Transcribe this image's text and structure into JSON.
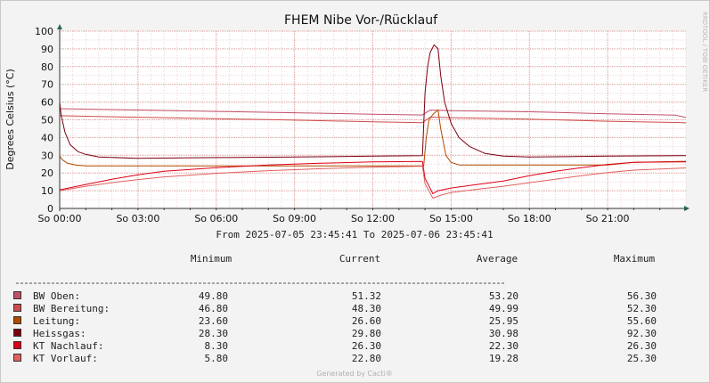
{
  "chart_data": {
    "type": "line",
    "title": "FHEM Nibe Vor-/Rücklauf",
    "ylabel": "Degrees Celsius (°C)",
    "xlabel": "",
    "ylim": [
      0,
      100
    ],
    "y_ticks": [
      0,
      10,
      20,
      30,
      40,
      50,
      60,
      70,
      80,
      90,
      100
    ],
    "x_range_hours": [
      0,
      24
    ],
    "x_ticks": [
      {
        "hour": 0,
        "label": "So 00:00"
      },
      {
        "hour": 3,
        "label": "So 03:00"
      },
      {
        "hour": 6,
        "label": "So 06:00"
      },
      {
        "hour": 9,
        "label": "So 09:00"
      },
      {
        "hour": 12,
        "label": "So 12:00"
      },
      {
        "hour": 15,
        "label": "So 15:00"
      },
      {
        "hour": 18,
        "label": "So 18:00"
      },
      {
        "hour": 21,
        "label": "So 21:00"
      }
    ],
    "grid": true,
    "watermark": "RRDTOOL / TOBI OETIKER",
    "time_range_text": "From 2025-07-05 23:45:41 To 2025-07-06 23:45:41",
    "legend_headers": {
      "minimum": "Minimum",
      "current": "Current",
      "average": "Average",
      "maximum": "Maximum"
    },
    "credit": "Generated by Cacti®",
    "series": [
      {
        "name": "BW Oben:",
        "color": "#c0506a",
        "minimum": "49.80",
        "current": "51.32",
        "average": "53.20",
        "maximum": "56.30",
        "x": [
          0,
          2,
          4,
          6,
          8,
          10,
          12,
          13.9,
          14.2,
          15,
          18,
          21,
          23.6,
          24
        ],
        "y": [
          56.3,
          55.8,
          55.3,
          54.7,
          54.2,
          53.7,
          53.1,
          52.7,
          55.5,
          55.2,
          54.5,
          53.4,
          52.6,
          51.3
        ]
      },
      {
        "name": "BW Bereitung:",
        "color": "#d04a4a",
        "minimum": "46.80",
        "current": "48.30",
        "average": "49.99",
        "maximum": "52.30",
        "x": [
          0,
          2,
          4,
          6,
          8,
          10,
          12,
          13.9,
          14.2,
          15,
          18,
          21,
          23.6,
          24
        ],
        "y": [
          52.3,
          51.7,
          51.2,
          50.6,
          50.1,
          49.5,
          48.9,
          48.4,
          51.5,
          51.2,
          50.4,
          49.2,
          48.5,
          48.3
        ]
      },
      {
        "name": "Leitung:",
        "color": "#b04a00",
        "minimum": "23.60",
        "current": "26.60",
        "average": "25.95",
        "maximum": "55.60",
        "x": [
          0,
          0.1,
          0.3,
          0.6,
          1,
          3,
          6,
          9,
          12,
          13.95,
          14.05,
          14.15,
          14.3,
          14.5,
          14.6,
          14.8,
          15,
          15.3,
          18,
          21,
          22,
          24
        ],
        "y": [
          29.5,
          27.5,
          25.5,
          24.5,
          24.0,
          24.0,
          24.0,
          24.0,
          24.0,
          24.0,
          40.0,
          50.0,
          53.0,
          55.6,
          45.0,
          30.0,
          26.0,
          24.5,
          24.5,
          24.5,
          26.0,
          26.6
        ]
      },
      {
        "name": "Heissgas:",
        "color": "#7a0010",
        "minimum": "28.30",
        "current": "29.80",
        "average": "30.98",
        "maximum": "92.30",
        "x": [
          0,
          0.05,
          0.2,
          0.4,
          0.7,
          1,
          1.5,
          3,
          6,
          9,
          12,
          13.9,
          14.0,
          14.1,
          14.2,
          14.35,
          14.5,
          14.6,
          14.75,
          15.0,
          15.3,
          15.7,
          16.3,
          17,
          18,
          21,
          24
        ],
        "y": [
          60.0,
          53.0,
          43.0,
          36.0,
          32.0,
          30.5,
          29.0,
          28.3,
          28.7,
          29.0,
          29.5,
          29.8,
          65.0,
          80.0,
          88.0,
          92.3,
          90.0,
          75.0,
          60.0,
          48.0,
          40.0,
          35.0,
          31.0,
          29.5,
          29.0,
          29.5,
          29.8
        ]
      },
      {
        "name": "KT Nachlauf:",
        "color": "#dd0018",
        "minimum": "8.30",
        "current": "26.30",
        "average": "22.30",
        "maximum": "26.30",
        "x": [
          0,
          1,
          2,
          3,
          4,
          6,
          8,
          10,
          12,
          13.9,
          14.0,
          14.3,
          14.5,
          15,
          16,
          17,
          18,
          19,
          20,
          21,
          22,
          24
        ],
        "y": [
          10.5,
          13.5,
          16.5,
          19.0,
          21.0,
          23.0,
          24.5,
          25.5,
          26.3,
          26.5,
          17.0,
          8.3,
          10.0,
          11.5,
          13.5,
          15.5,
          18.5,
          21.0,
          23.0,
          24.8,
          26.0,
          26.3
        ]
      },
      {
        "name": "KT Vorlauf:",
        "color": "#e06060",
        "minimum": "5.80",
        "current": "22.80",
        "average": "19.28",
        "maximum": "25.30",
        "x": [
          0,
          1,
          2,
          3,
          4,
          6,
          8,
          10,
          12,
          13.9,
          14.0,
          14.3,
          14.6,
          15,
          16,
          17,
          18,
          19,
          20,
          21,
          22,
          24
        ],
        "y": [
          10.0,
          12.5,
          14.5,
          16.3,
          17.8,
          19.8,
          21.3,
          22.4,
          23.3,
          23.8,
          14.0,
          5.8,
          7.5,
          9.0,
          10.8,
          12.5,
          14.5,
          16.5,
          18.5,
          20.2,
          21.6,
          22.8
        ]
      }
    ]
  }
}
